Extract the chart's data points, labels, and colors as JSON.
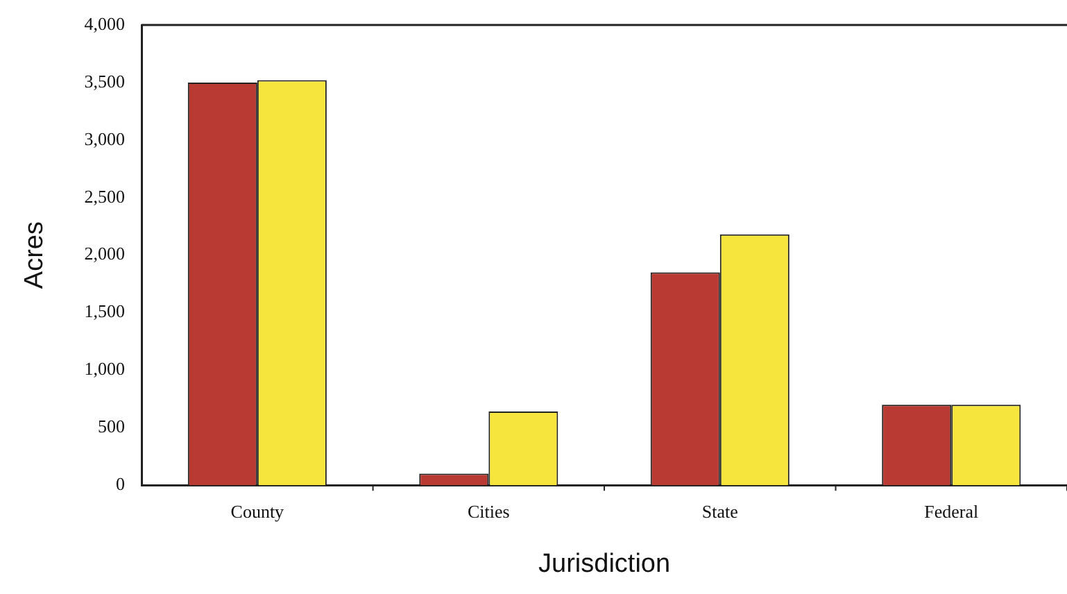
{
  "chart_data": {
    "type": "bar",
    "xlabel": "Jurisdiction",
    "ylabel": "Acres",
    "categories": [
      "County",
      "Cities",
      "State",
      "Federal"
    ],
    "series": [
      {
        "color": "#b83a32",
        "values": [
          3500,
          100,
          1850,
          700
        ]
      },
      {
        "color": "#f5e53c",
        "values": [
          3520,
          640,
          2180,
          700
        ]
      }
    ],
    "ylim": [
      0,
      4000
    ],
    "yticks": [
      {
        "value": 0,
        "label": "0"
      },
      {
        "value": 500,
        "label": "500"
      },
      {
        "value": 1000,
        "label": "1,000"
      },
      {
        "value": 1500,
        "label": "1,500"
      },
      {
        "value": 2000,
        "label": "2,000"
      },
      {
        "value": 2500,
        "label": "2,500"
      },
      {
        "value": 3000,
        "label": "3,000"
      },
      {
        "value": 3500,
        "label": "3,500"
      },
      {
        "value": 4000,
        "label": "4,000"
      }
    ],
    "grid": false,
    "legend": false
  }
}
